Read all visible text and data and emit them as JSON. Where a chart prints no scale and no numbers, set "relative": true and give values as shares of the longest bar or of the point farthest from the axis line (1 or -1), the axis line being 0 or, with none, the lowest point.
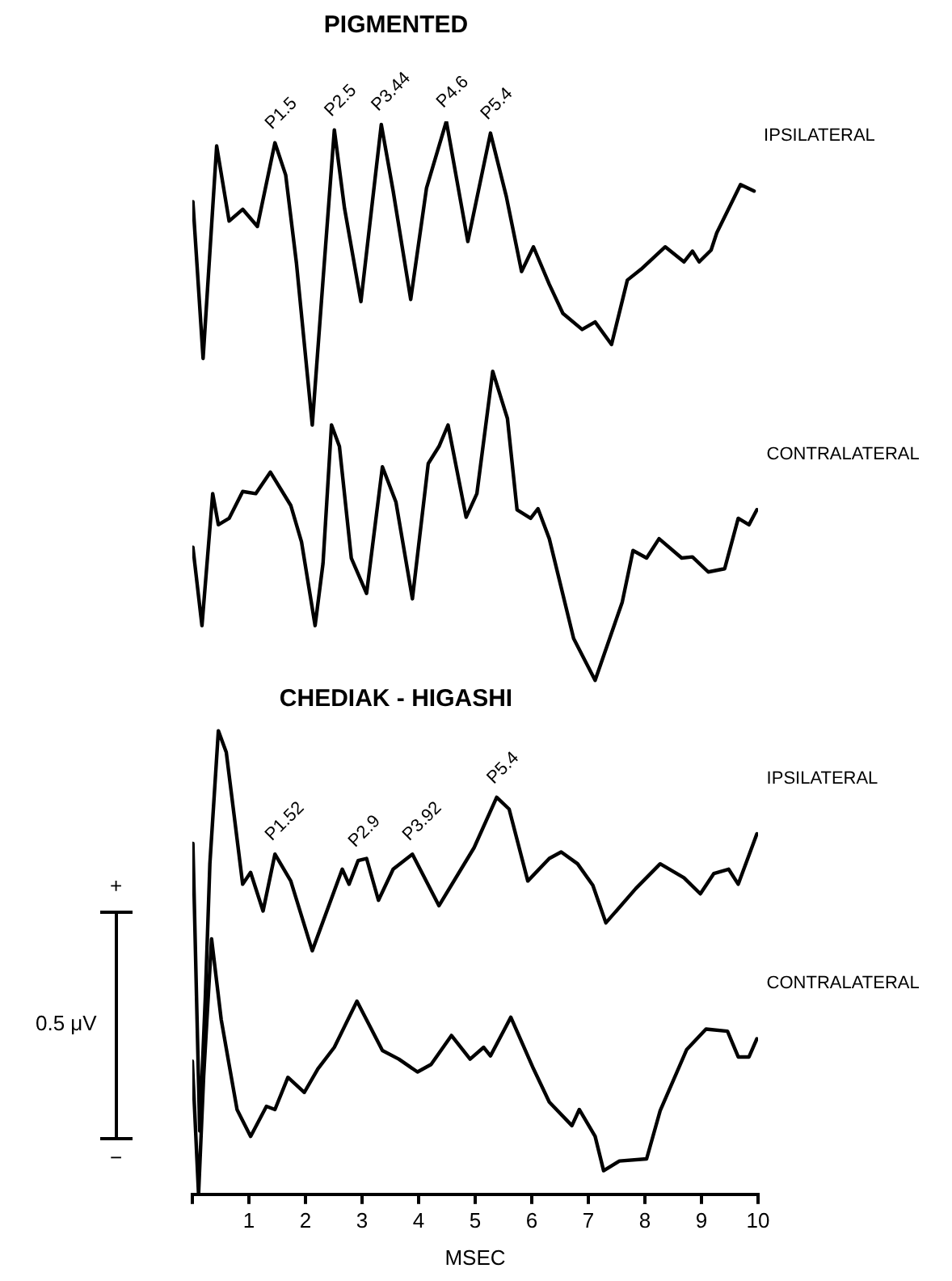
{
  "chart_data": {
    "type": "line",
    "title": "PIGMENTED",
    "subtitle": "CHEDIAK - HIGASHI",
    "xlabel": "MSEC",
    "relative": true,
    "marker": "none",
    "xlim": [
      0,
      10
    ],
    "xticks": [
      {
        "value": 0,
        "label": null
      },
      1,
      2,
      3,
      4,
      5,
      6,
      7,
      8,
      9,
      10
    ],
    "series": [
      {
        "name": "IPSILATERAL",
        "color": "#000000",
        "x": [
          0.01,
          0.19,
          0.43,
          0.65,
          0.89,
          1.15,
          1.46,
          1.65,
          1.84,
          2.12,
          2.31,
          2.51,
          2.69,
          2.98,
          3.34,
          3.55,
          3.86,
          4.14,
          4.49,
          4.87,
          5.27,
          5.55,
          5.82,
          6.03,
          6.31,
          6.55,
          6.89,
          7.12,
          7.41,
          7.69,
          7.93,
          8.36,
          8.69,
          8.84,
          8.96,
          9.17,
          9.27,
          9.69,
          9.93
        ],
        "values": [
          0.925,
          0.779,
          0.977,
          0.907,
          0.918,
          0.902,
          0.98,
          0.95,
          0.868,
          0.717,
          0.852,
          0.992,
          0.919,
          0.832,
          0.997,
          0.935,
          0.834,
          0.938,
          1.0,
          0.888,
          0.989,
          0.93,
          0.86,
          0.883,
          0.848,
          0.821,
          0.806,
          0.813,
          0.792,
          0.852,
          0.862,
          0.883,
          0.869,
          0.879,
          0.869,
          0.88,
          0.896,
          0.941,
          0.935
        ]
      },
      {
        "name": "CONTRALATERAL",
        "color": "#000000",
        "x": [
          0.01,
          0.17,
          0.36,
          0.46,
          0.65,
          0.89,
          1.12,
          1.38,
          1.74,
          1.93,
          2.17,
          2.31,
          2.46,
          2.6,
          2.81,
          3.08,
          3.36,
          3.6,
          3.89,
          4.17,
          4.36,
          4.52,
          4.84,
          5.03,
          5.31,
          5.57,
          5.74,
          5.98,
          6.11,
          6.31,
          6.74,
          7.12,
          7.6,
          7.79,
          8.03,
          8.25,
          8.65,
          8.84,
          9.12,
          9.41,
          9.65,
          9.84,
          9.98
        ],
        "values": [
          0.603,
          0.53,
          0.653,
          0.624,
          0.63,
          0.655,
          0.653,
          0.673,
          0.642,
          0.608,
          0.53,
          0.588,
          0.717,
          0.697,
          0.593,
          0.56,
          0.678,
          0.645,
          0.555,
          0.681,
          0.697,
          0.717,
          0.631,
          0.653,
          0.767,
          0.723,
          0.638,
          0.63,
          0.639,
          0.611,
          0.518,
          0.479,
          0.552,
          0.6,
          0.593,
          0.611,
          0.593,
          0.594,
          0.58,
          0.583,
          0.63,
          0.624,
          0.638
        ]
      },
      {
        "name": "IPSILATERAL",
        "color": "#000000",
        "x": [
          0.01,
          0.13,
          0.23,
          0.31,
          0.46,
          0.6,
          0.89,
          1.03,
          1.25,
          1.46,
          1.74,
          2.12,
          2.65,
          2.77,
          2.93,
          3.08,
          3.29,
          3.55,
          3.89,
          4.36,
          4.98,
          5.38,
          5.6,
          5.93,
          6.31,
          6.52,
          6.81,
          7.08,
          7.31,
          7.84,
          8.27,
          8.69,
          8.98,
          9.22,
          9.48,
          9.65,
          9.98
        ],
        "values": [
          0.327,
          0.059,
          0.184,
          0.308,
          0.432,
          0.412,
          0.289,
          0.3,
          0.264,
          0.317,
          0.292,
          0.227,
          0.303,
          0.289,
          0.311,
          0.313,
          0.274,
          0.303,
          0.317,
          0.269,
          0.323,
          0.37,
          0.359,
          0.292,
          0.313,
          0.319,
          0.308,
          0.288,
          0.253,
          0.285,
          0.308,
          0.295,
          0.28,
          0.299,
          0.303,
          0.289,
          0.336
        ]
      },
      {
        "name": "CONTRALATERAL",
        "color": "#000000",
        "x": [
          0.0,
          0.11,
          0.2,
          0.34,
          0.51,
          0.65,
          0.79,
          1.03,
          1.31,
          1.46,
          1.69,
          1.98,
          2.22,
          2.51,
          2.91,
          3.36,
          3.65,
          3.98,
          4.22,
          4.58,
          4.91,
          5.15,
          5.27,
          5.63,
          6.03,
          6.31,
          6.71,
          6.84,
          7.12,
          7.27,
          7.55,
          8.03,
          8.27,
          8.74,
          9.08,
          9.46,
          9.65,
          9.84,
          9.98
        ],
        "values": [
          0.124,
          0.0,
          0.11,
          0.238,
          0.163,
          0.121,
          0.079,
          0.054,
          0.082,
          0.079,
          0.109,
          0.095,
          0.117,
          0.137,
          0.18,
          0.134,
          0.126,
          0.114,
          0.121,
          0.148,
          0.126,
          0.137,
          0.129,
          0.165,
          0.117,
          0.086,
          0.064,
          0.079,
          0.054,
          0.022,
          0.031,
          0.033,
          0.078,
          0.135,
          0.154,
          0.152,
          0.128,
          0.128,
          0.145
        ]
      }
    ],
    "annotations": [
      {
        "text": "P1.5",
        "x": 1.46,
        "y": 0.98
      },
      {
        "text": "P2.5",
        "x": 2.51,
        "y": 0.992
      },
      {
        "text": "P3.44",
        "x": 3.34,
        "y": 0.997
      },
      {
        "text": "P4.6",
        "x": 4.49,
        "y": 1.0
      },
      {
        "text": "P5.4",
        "x": 5.27,
        "y": 0.989
      },
      {
        "text": "P1.52",
        "x": 1.46,
        "y": 0.317
      },
      {
        "text": "P2.9",
        "x": 2.93,
        "y": 0.311
      },
      {
        "text": "P3.92",
        "x": 3.89,
        "y": 0.317
      },
      {
        "text": "P5.4",
        "x": 5.38,
        "y": 0.37
      },
      "+",
      "0.5 μV",
      "−"
    ]
  }
}
